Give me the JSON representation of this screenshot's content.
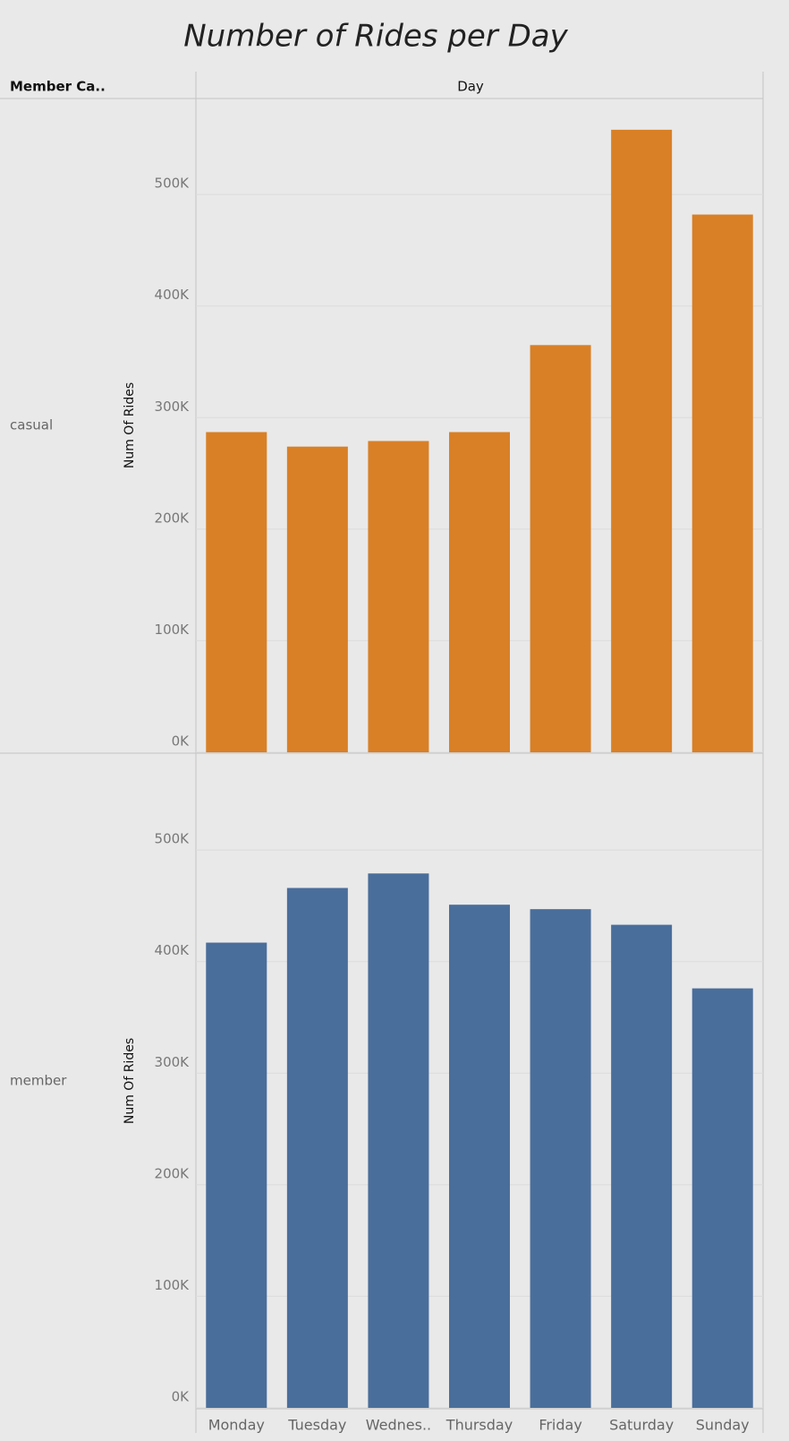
{
  "chart_data": {
    "type": "bar",
    "title": "Number of Rides per Day",
    "row_header": "Member Ca..",
    "column_header": "Day",
    "y_label": "Num Of Rides",
    "categories": [
      "Monday",
      "Tuesday",
      "Wednes..",
      "Thursday",
      "Friday",
      "Saturday",
      "Sunday"
    ],
    "series": [
      {
        "name": "casual",
        "color": "#d98026",
        "values": [
          287000,
          274000,
          279000,
          287000,
          365000,
          558000,
          482000
        ]
      },
      {
        "name": "member",
        "color": "#4a6e9b",
        "values": [
          417000,
          466000,
          479000,
          451000,
          447000,
          433000,
          376000
        ]
      }
    ],
    "ylim": [
      0,
      586000
    ],
    "yticks": [
      {
        "value": 0,
        "label": "0K"
      },
      {
        "value": 100000,
        "label": "100K"
      },
      {
        "value": 200000,
        "label": "200K"
      },
      {
        "value": 300000,
        "label": "300K"
      },
      {
        "value": 400000,
        "label": "400K"
      },
      {
        "value": 500000,
        "label": "500K"
      }
    ],
    "grid": true
  }
}
